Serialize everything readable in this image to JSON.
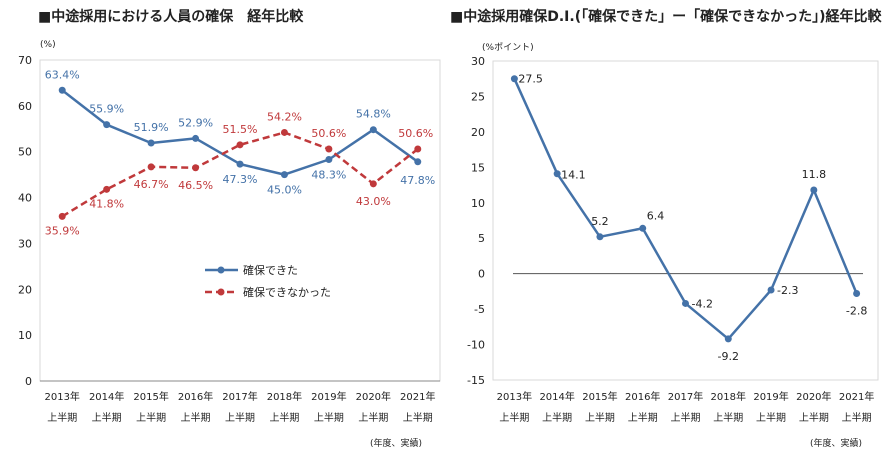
{
  "chart_data": [
    {
      "type": "line",
      "title": "■中途採用における人員の確保　経年比較",
      "unit_label": "(%)",
      "note": "(年度、実績)",
      "categories": [
        "2013年",
        "2014年",
        "2015年",
        "2016年",
        "2017年",
        "2018年",
        "2019年",
        "2020年",
        "2021年"
      ],
      "category_sublabel": "上半期",
      "ylim": [
        0,
        70
      ],
      "yticks": [
        "0",
        "10",
        "20",
        "30",
        "40",
        "50",
        "60",
        "70"
      ],
      "grid": false,
      "legend_position": "center",
      "series": [
        {
          "name": "確保できた",
          "color": "#4472a8",
          "style": "solid",
          "marker": "circle",
          "values": [
            63.4,
            55.9,
            51.9,
            52.9,
            47.3,
            45.0,
            48.3,
            54.8,
            47.8
          ],
          "labels": [
            "63.4%",
            "55.9%",
            "51.9%",
            "52.9%",
            "47.3%",
            "45.0%",
            "48.3%",
            "54.8%",
            "47.8%"
          ]
        },
        {
          "name": "確保できなかった",
          "color": "#c0393b",
          "style": "dashed",
          "marker": "circle",
          "values": [
            35.9,
            41.8,
            46.7,
            46.5,
            51.5,
            54.2,
            50.6,
            43.0,
            50.6
          ],
          "labels": [
            "35.9%",
            "41.8%",
            "46.7%",
            "46.5%",
            "51.5%",
            "54.2%",
            "50.6%",
            "43.0%",
            "50.6%"
          ]
        }
      ]
    },
    {
      "type": "line",
      "title": "■中途採用確保D.I.(「確保できた」ー「確保できなかった」)経年比較",
      "unit_label": "(%ポイント)",
      "note": "(年度、実績)",
      "categories": [
        "2013年",
        "2014年",
        "2015年",
        "2016年",
        "2017年",
        "2018年",
        "2019年",
        "2020年",
        "2021年"
      ],
      "category_sublabel": "上半期",
      "ylim": [
        -15,
        30
      ],
      "yticks": [
        "-15",
        "-10",
        "-5",
        "0",
        "5",
        "10",
        "15",
        "20",
        "25",
        "30"
      ],
      "grid": false,
      "series": [
        {
          "color": "#4472a8",
          "style": "solid",
          "marker": "circle",
          "values": [
            27.5,
            14.1,
            5.2,
            6.4,
            -4.2,
            -9.2,
            -2.3,
            11.8,
            -2.8
          ],
          "labels": [
            "27.5",
            "14.1",
            "5.2",
            "6.4",
            "-4.2",
            "-9.2",
            "-2.3",
            "11.8",
            "-2.8"
          ]
        }
      ]
    }
  ]
}
